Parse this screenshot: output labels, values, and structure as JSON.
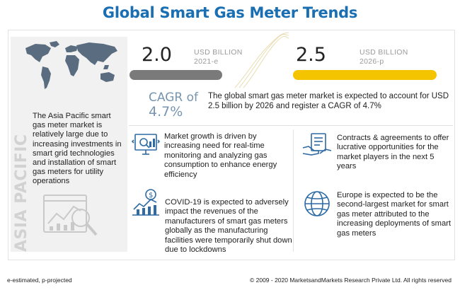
{
  "title": "Global Smart Gas Meter Trends",
  "region_label": "ASIA PACIFIC",
  "region_text": "The Asia Pacific smart gas meter market is relatively large due to increasing investments in smart grid technologies and installation of smart gas meters for utility operations",
  "market_2021": {
    "value": "2.0",
    "unit": "USD BILLION",
    "year": "2021-e",
    "fill": 0.58,
    "color": "#7a7a7a"
  },
  "market_2026": {
    "value": "2.5",
    "unit": "USD BILLION",
    "year": "2026-p",
    "fill": 0.9,
    "color": "#f5c400"
  },
  "cagr": {
    "label": "CAGR of",
    "value": "4.7%"
  },
  "summary": "The global smart gas meter market is expected to account for USD 2.5 billion by 2026 and register a CAGR of 4.7%",
  "points": {
    "growth": "Market growth is driven by increasing need for real-time monitoring and analyzing gas consumption to enhance energy efficiency",
    "contracts": "Contracts & agreements to offer lucrative opportunities for the market players in the next 5 years",
    "covid": "COVID-19 is expected to adversely impact the revenues of the manufacturers of smart gas meters globally as the manufacturing facilities were temporarily shut down due to lockdowns",
    "europe": "Europe is expected to be the second-largest market for smart gas meter attributed to the increasing deployments of smart gas meters"
  },
  "icons": [
    "world-map-icon",
    "magnifier-chart-icon",
    "monitoring-icon",
    "handshake-icon",
    "dollar-chart-icon",
    "globe-icon"
  ],
  "colors": {
    "title": "#1a6fb3",
    "icon": "#2e6aa3",
    "cagr": "#7795b0"
  },
  "footer": {
    "left": "e-estimated, p-projected",
    "right": "© 2009 - 2020 MarketsandMarkets Research Private Ltd. All rights reserved"
  }
}
